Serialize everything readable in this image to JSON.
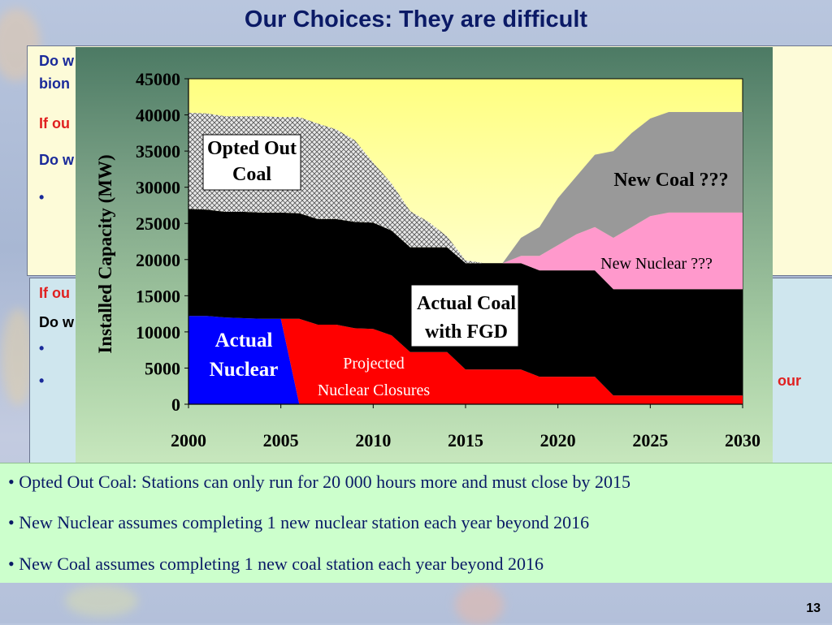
{
  "slide": {
    "title": "Our Choices: They are difficult",
    "page_number": "13",
    "background_fragments": [
      "Do w",
      "bion",
      "If ou",
      "Do w",
      "•",
      "If ou",
      "Do w",
      "•",
      "•",
      "our"
    ]
  },
  "notes": [
    "• Opted Out Coal: Stations can only run for 20 000 hours more and must close by 2015",
    "• New Nuclear assumes completing 1 new nuclear station each year beyond 2016",
    "• New Coal assumes completing 1 new coal station each year beyond 2016"
  ],
  "chart_data": {
    "type": "area",
    "stacked": true,
    "title": "",
    "xlabel": "",
    "ylabel": "Installed Capacity (MW)",
    "xlim": [
      2000,
      2030
    ],
    "ylim": [
      0,
      45000
    ],
    "x_ticks": [
      "2000",
      "2005",
      "2010",
      "2015",
      "2020",
      "2025",
      "2030"
    ],
    "y_ticks": [
      "0",
      "5000",
      "10000",
      "15000",
      "20000",
      "25000",
      "30000",
      "35000",
      "40000",
      "45000"
    ],
    "grid": false,
    "x": [
      2000,
      2001,
      2002,
      2003,
      2004,
      2005,
      2006,
      2007,
      2008,
      2009,
      2010,
      2011,
      2012,
      2013,
      2014,
      2015,
      2016,
      2017,
      2018,
      2019,
      2020,
      2021,
      2022,
      2023,
      2024,
      2025,
      2026,
      2027,
      2028,
      2029,
      2030
    ],
    "series": [
      {
        "name": "Actual Nuclear",
        "color": "#0000ff",
        "values": [
          12200,
          12200,
          12000,
          11900,
          11800,
          11800,
          0,
          0,
          0,
          0,
          0,
          0,
          0,
          0,
          0,
          0,
          0,
          0,
          0,
          0,
          0,
          0,
          0,
          0,
          0,
          0,
          0,
          0,
          0,
          0,
          0
        ]
      },
      {
        "name": "Projected Nuclear Closures",
        "color": "#ff0000",
        "values": [
          0,
          0,
          0,
          0,
          0,
          0,
          11800,
          11000,
          11000,
          10500,
          10400,
          9500,
          7200,
          7200,
          7200,
          4800,
          4800,
          4800,
          4800,
          3800,
          3800,
          3800,
          3800,
          1200,
          1200,
          1200,
          1200,
          1200,
          1200,
          1200,
          1200
        ]
      },
      {
        "name": "Actual Coal with FGD",
        "color": "#000000",
        "values": [
          14800,
          14700,
          14600,
          14700,
          14700,
          14700,
          14600,
          14600,
          14600,
          14700,
          14700,
          14500,
          14500,
          14500,
          14500,
          14700,
          14700,
          14700,
          14700,
          14700,
          14700,
          14700,
          14700,
          14700,
          14700,
          14700,
          14700,
          14700,
          14700,
          14700,
          14700
        ]
      },
      {
        "name": "Opted Out Coal",
        "color": "#c0c0c0",
        "values": [
          13300,
          13300,
          13200,
          13200,
          13300,
          13200,
          13300,
          13200,
          12400,
          11300,
          8300,
          6500,
          5000,
          3500,
          1500,
          400,
          0,
          0,
          0,
          0,
          0,
          0,
          0,
          0,
          0,
          0,
          0,
          0,
          0,
          0,
          0
        ]
      },
      {
        "name": "New Nuclear ???",
        "color": "#ff99cc",
        "values": [
          0,
          0,
          0,
          0,
          0,
          0,
          0,
          0,
          0,
          0,
          0,
          0,
          0,
          0,
          0,
          0,
          0,
          0,
          1000,
          2000,
          3500,
          5000,
          6000,
          7100,
          8600,
          10100,
          10600,
          10600,
          10600,
          10600,
          10600
        ]
      },
      {
        "name": "New Coal ???",
        "color": "#999999",
        "values": [
          0,
          0,
          0,
          0,
          0,
          0,
          0,
          0,
          0,
          0,
          0,
          0,
          0,
          0,
          0,
          0,
          0,
          0,
          2500,
          4000,
          6500,
          8000,
          10000,
          12000,
          13000,
          13500,
          13900,
          13900,
          13900,
          13900,
          13900
        ]
      }
    ],
    "annotations": [
      {
        "text_lines": [
          "Opted Out",
          "Coal"
        ],
        "boxed": true
      },
      {
        "text_lines": [
          "New Coal ???"
        ],
        "boxed": false
      },
      {
        "text_lines": [
          "New Nuclear ???"
        ],
        "boxed": false
      },
      {
        "text_lines": [
          "Actual Coal",
          "with FGD"
        ],
        "boxed": true
      },
      {
        "text_lines": [
          "Actual",
          "Nuclear"
        ],
        "boxed": false
      },
      {
        "text_lines": [
          "Projected",
          "Nuclear Closures"
        ],
        "boxed": false
      }
    ]
  }
}
